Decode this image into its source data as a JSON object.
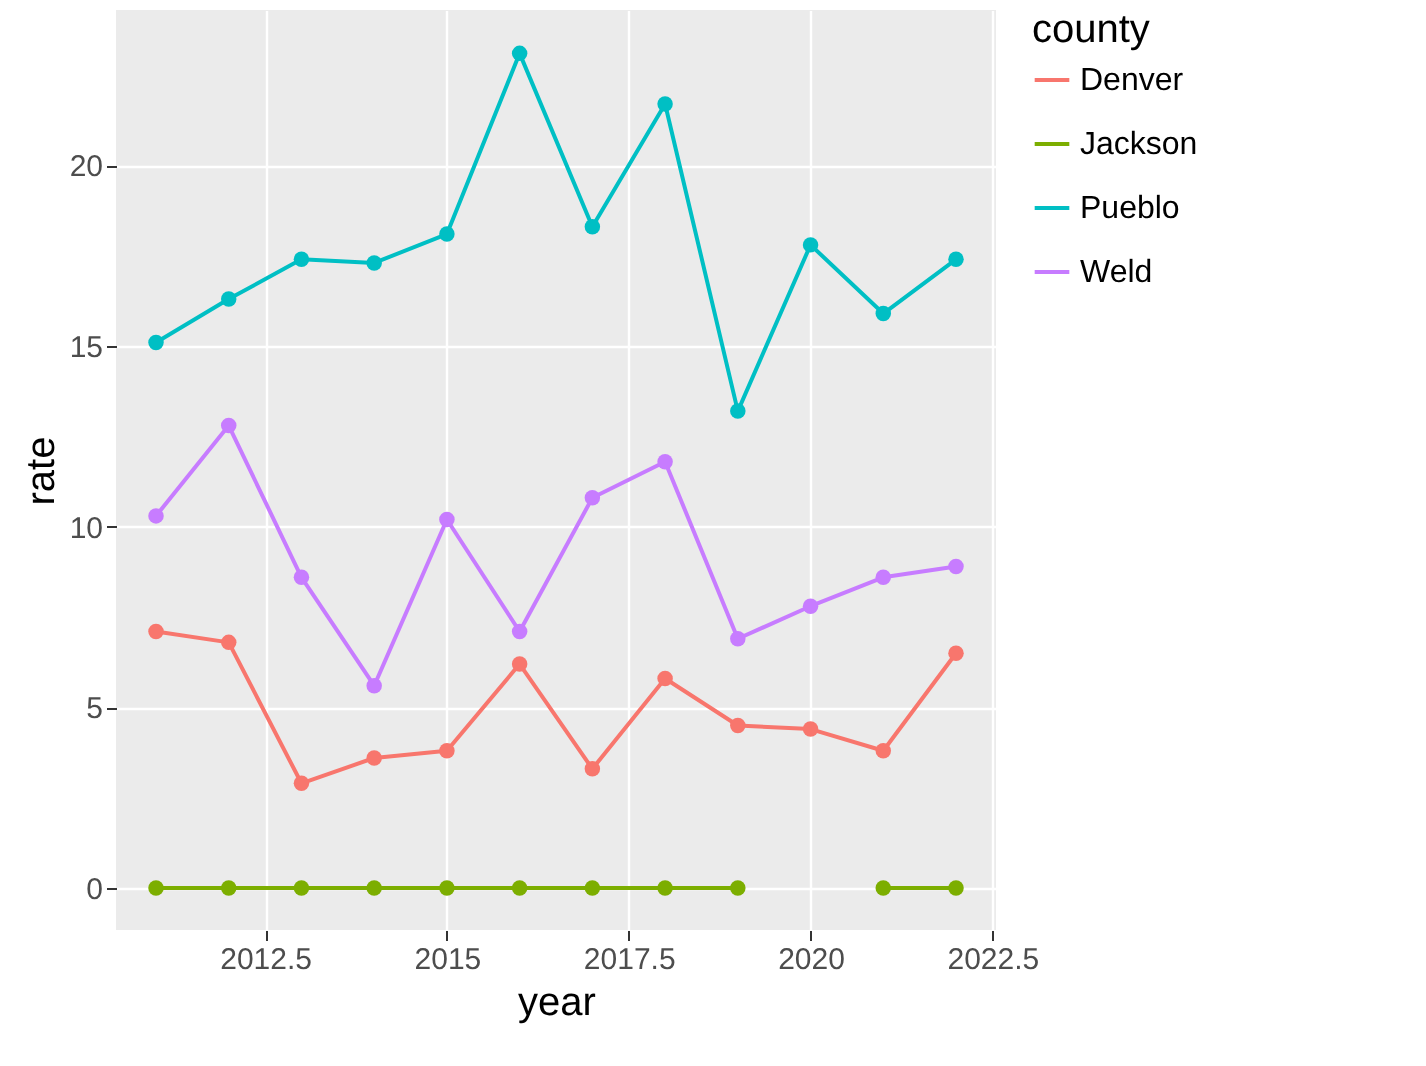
{
  "chart_data": {
    "type": "line",
    "xlabel": "year",
    "ylabel": "rate",
    "legend_title": "county",
    "x": [
      2011,
      2012,
      2013,
      2014,
      2015,
      2016,
      2017,
      2018,
      2019,
      2020,
      2021,
      2022
    ],
    "series": [
      {
        "name": "Denver",
        "color": "#f8766d",
        "values": [
          7.1,
          6.8,
          2.9,
          3.6,
          3.8,
          6.2,
          3.3,
          5.8,
          4.5,
          4.4,
          3.8,
          6.5
        ]
      },
      {
        "name": "Jackson",
        "color": "#7cae00",
        "values": [
          0,
          0,
          0,
          0,
          0,
          0,
          0,
          0,
          0,
          null,
          0,
          0
        ]
      },
      {
        "name": "Pueblo",
        "color": "#00bfc4",
        "values": [
          15.1,
          16.3,
          17.4,
          17.3,
          18.1,
          23.1,
          18.3,
          21.7,
          13.2,
          17.8,
          15.9,
          17.4
        ]
      },
      {
        "name": "Weld",
        "color": "#c77cff",
        "values": [
          10.3,
          12.8,
          8.6,
          5.6,
          10.2,
          7.1,
          10.8,
          11.8,
          6.9,
          7.8,
          8.6,
          8.9
        ]
      }
    ],
    "xlim": [
      2010.45,
      2022.55
    ],
    "xticks": [
      2012.5,
      2015,
      2017.5,
      2020,
      2022.5
    ],
    "ylim": [
      -1.16,
      24.3
    ],
    "yticks": [
      0,
      5,
      10,
      15,
      20
    ],
    "grid": true,
    "legend": "right",
    "marker": "circle"
  }
}
